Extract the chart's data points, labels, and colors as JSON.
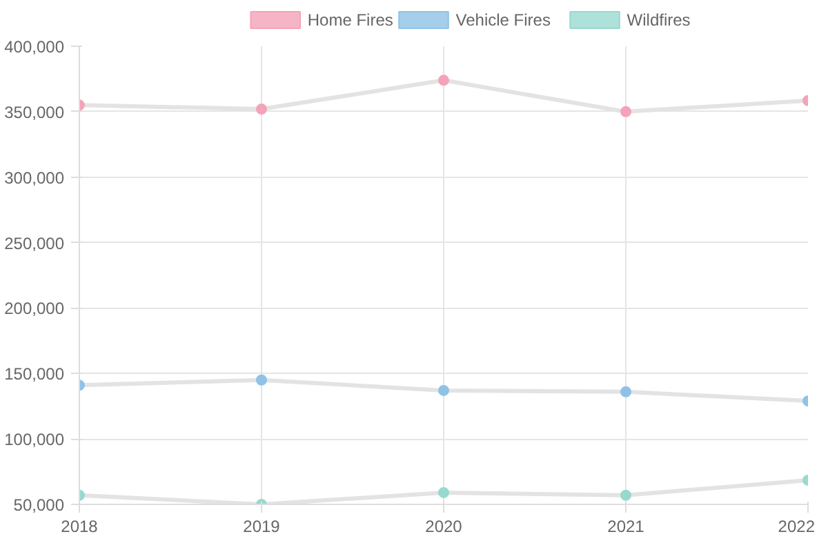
{
  "chart_data": {
    "type": "line",
    "x": [
      2018,
      2019,
      2020,
      2021,
      2022
    ],
    "series": [
      {
        "name": "Home Fires",
        "color": "#f4a3b9",
        "values": [
          355000,
          352000,
          374000,
          350000,
          358500
        ]
      },
      {
        "name": "Vehicle Fires",
        "color": "#8fc2e6",
        "values": [
          141000,
          145000,
          137000,
          136000,
          129000
        ]
      },
      {
        "name": "Wildfires",
        "color": "#98d9cf",
        "values": [
          57000,
          50000,
          59000,
          57000,
          68500
        ]
      }
    ],
    "xlim": [
      2018,
      2022
    ],
    "xticks": [
      2018,
      2019,
      2020,
      2021,
      2022
    ],
    "ylim": [
      50000,
      400000
    ],
    "yticks": [
      {
        "value": 50000,
        "label": "50,000"
      },
      {
        "value": 100000,
        "label": "100,000"
      },
      {
        "value": 150000,
        "label": "150,000"
      },
      {
        "value": 200000,
        "label": "200,000"
      },
      {
        "value": 250000,
        "label": "250,000"
      },
      {
        "value": 300000,
        "label": "300,000"
      },
      {
        "value": 350000,
        "label": "350,000"
      },
      {
        "value": 400000,
        "label": "400,000"
      }
    ],
    "grid": true,
    "legend": "top",
    "marker": "circle",
    "line_style": "solid"
  }
}
